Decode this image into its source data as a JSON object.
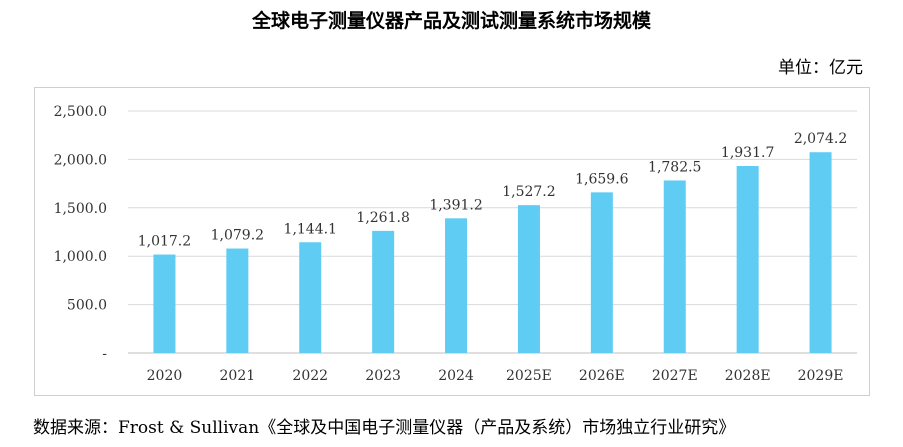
{
  "title": "全球电子测量仪器产品及测试测量系统市场规模",
  "unit": "单位：亿元",
  "source": "数据来源：Frost & Sullivan《全球及中国电子测量仪器（产品及系统）市场独立行业研究》",
  "chart_data": {
    "type": "bar",
    "categories": [
      "2020",
      "2021",
      "2022",
      "2023",
      "2024",
      "2025E",
      "2026E",
      "2027E",
      "2028E",
      "2029E"
    ],
    "values": [
      1017.2,
      1079.2,
      1144.1,
      1261.8,
      1391.2,
      1527.2,
      1659.6,
      1782.5,
      1931.7,
      2074.2
    ],
    "value_labels": [
      "1,017.2",
      "1,079.2",
      "1,144.1",
      "1,261.8",
      "1,391.2",
      "1,527.2",
      "1,659.6",
      "1,782.5",
      "1,931.7",
      "2,074.2"
    ],
    "y_ticks": [
      0,
      500,
      1000,
      1500,
      2000,
      2500
    ],
    "y_tick_labels": [
      "-",
      "500.0",
      "1,000.0",
      "1,500.0",
      "2,000.0",
      "2,500.0"
    ],
    "ylim": [
      0,
      2500
    ],
    "grid": true,
    "bar_color": "#5ECCF3",
    "grid_color": "#d9d9d9",
    "xlabel": "",
    "ylabel": ""
  }
}
